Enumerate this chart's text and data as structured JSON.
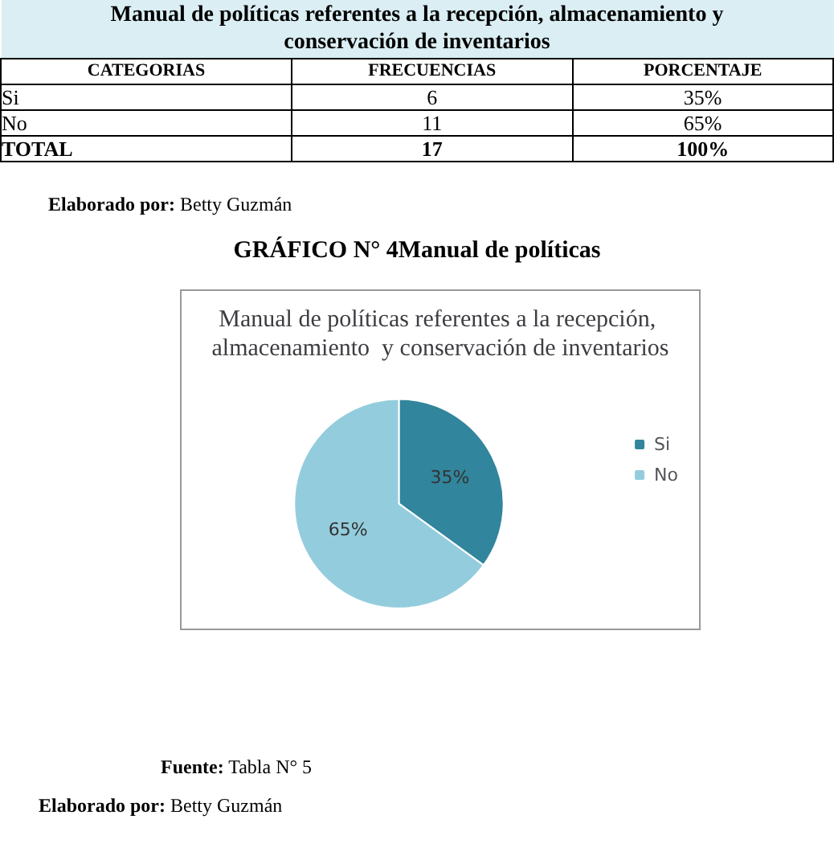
{
  "chart_data": {
    "type": "pie",
    "title": "Manual de políticas referentes a la recepción, almacenamiento  y conservación de inventarios",
    "subtitle": "GRÁFICO N° 4Manual de políticas",
    "categories": [
      "Si",
      "No"
    ],
    "values": [
      35,
      65
    ],
    "colors": [
      "#31859c",
      "#93cddd"
    ],
    "value_labels": [
      "35%",
      "65%"
    ],
    "legend": "right",
    "annotations": [
      "Manual de políticas referentes a la recepción, almacenamiento  y conservación de inventarios",
      "CATEGORIAS\tFRECUENCIAS\tPORCENTAJE",
      "Si\t6\t35%",
      "No\t11\t65%",
      "TOTAL\t17\t100%",
      "Elaborado por: Betty Guzmán",
      "Fuente: Tabla N° 5",
      "Elaborado por: Betty Guzmán"
    ]
  }
}
